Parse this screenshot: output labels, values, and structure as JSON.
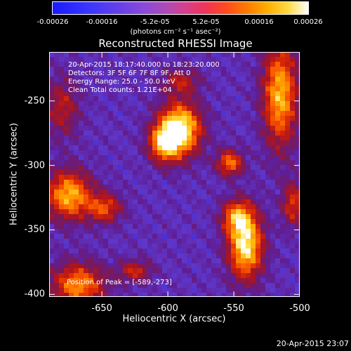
{
  "chart_data": {
    "type": "heatmap",
    "title": "Reconstructed RHESSI Image",
    "xlabel": "Heliocentric X (arcsec)",
    "ylabel": "Heliocentric Y (arcsec)",
    "xlim": [
      -690,
      -500
    ],
    "ylim": [
      -402,
      -212
    ],
    "x_ticks": [
      "-650",
      "-600",
      "-550",
      "-500"
    ],
    "x_tick_values": [
      -650,
      -600,
      -550,
      -500
    ],
    "y_ticks": [
      "-250",
      "-300",
      "-350",
      "-400"
    ],
    "y_tick_values": [
      -250,
      -300,
      -350,
      -400
    ],
    "colorbar": {
      "range": [
        -0.00026,
        0.00026
      ],
      "ticks": [
        "-0.00026",
        "-0.00016",
        "-5.2e-05",
        "5.2e-05",
        "0.00016",
        "0.00026"
      ],
      "tick_values": [
        -0.00026,
        -0.00016,
        -5.2e-05,
        5.2e-05,
        0.00016,
        0.00026
      ],
      "unit": "(photons cm⁻² s⁻¹ asec⁻²)"
    },
    "peak": [
      -589,
      -273
    ],
    "sources": [
      {
        "x": -591,
        "y": -272,
        "sx": 11,
        "sy": 14,
        "amp": 1.0
      },
      {
        "x": -603,
        "y": -283,
        "sx": 8,
        "sy": 10,
        "amp": 0.65
      },
      {
        "x": -541,
        "y": -362,
        "sx": 9,
        "sy": 18,
        "amp": 0.9
      },
      {
        "x": -548,
        "y": -340,
        "sx": 8,
        "sy": 9,
        "amp": 0.55
      },
      {
        "x": -675,
        "y": -323,
        "sx": 12,
        "sy": 13,
        "amp": 0.75
      },
      {
        "x": -648,
        "y": -333,
        "sx": 9,
        "sy": 8,
        "amp": 0.5
      },
      {
        "x": -668,
        "y": -393,
        "sx": 14,
        "sy": 12,
        "amp": 0.65
      },
      {
        "x": -625,
        "y": -382,
        "sx": 9,
        "sy": 6,
        "amp": 0.4
      },
      {
        "x": -515,
        "y": -245,
        "sx": 9,
        "sy": 28,
        "amp": 0.75
      },
      {
        "x": -553,
        "y": -298,
        "sx": 7,
        "sy": 7,
        "amp": 0.6
      },
      {
        "x": -505,
        "y": -330,
        "sx": 6,
        "sy": 12,
        "amp": 0.45
      },
      {
        "x": -680,
        "y": -255,
        "sx": 9,
        "sy": 16,
        "amp": 0.35
      },
      {
        "x": -590,
        "y": -235,
        "sx": 10,
        "sy": 7,
        "amp": 0.35
      }
    ]
  },
  "annotation": {
    "time_range": "20-Apr-2015 18:17:40.000 to 18:23:20.000",
    "detectors": "Detectors: 3F 5F 6F 7F 8F 9F, Att 0",
    "energy": "Energy Range: 25.0 - 50.0 keV",
    "method": "Clean    Total counts: 1.21E+04",
    "peak_text": "Position of Peak = [-589,-273]"
  },
  "footer": {
    "timestamp": "20-Apr-2015 23:07"
  }
}
